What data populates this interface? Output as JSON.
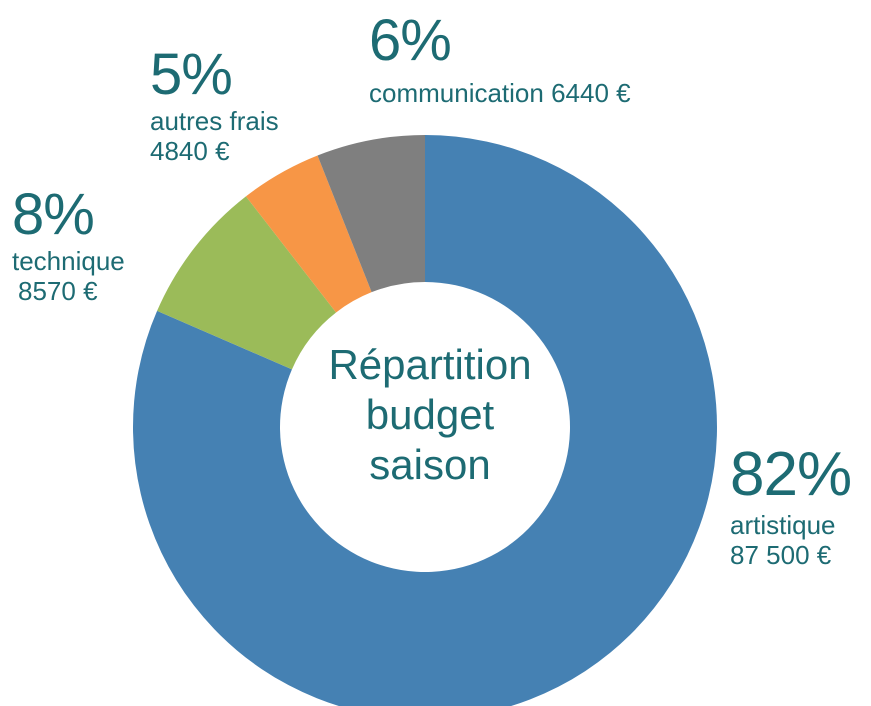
{
  "chart_data": {
    "type": "pie",
    "donut": true,
    "title": "Répartition budget saison",
    "slices": [
      {
        "name": "artistique",
        "percent_label": "82%",
        "amount_label": "87 500 €",
        "value": 87500,
        "color": "#4581b3"
      },
      {
        "name": "technique",
        "percent_label": "8%",
        "amount_label": "8570 €",
        "value": 8570,
        "color": "#9bbb59"
      },
      {
        "name": "autres frais",
        "percent_label": "5%",
        "amount_label": "4840 €",
        "value": 4840,
        "color": "#f79646"
      },
      {
        "name": "communication",
        "percent_label": "6%",
        "amount_label": "6440 €",
        "value": 6440,
        "color": "#7f7f7f"
      }
    ],
    "text_color": "#1d6b73"
  },
  "center": {
    "line1": "Répartition",
    "line2": "budget",
    "line3": "saison"
  }
}
